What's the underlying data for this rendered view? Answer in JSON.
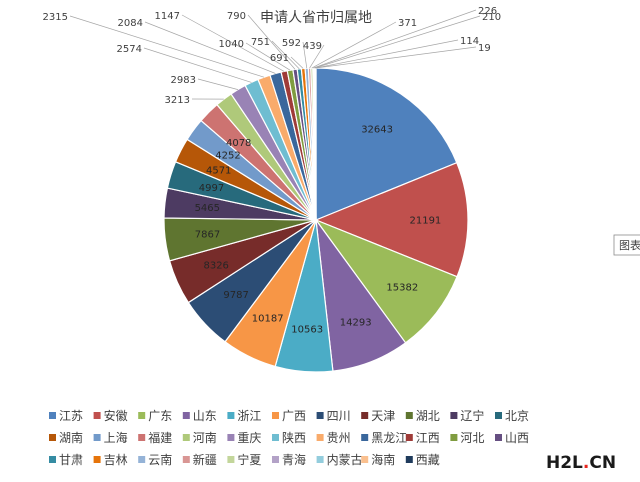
{
  "watermark": {
    "text_left": "H2L",
    "text_dot": ".",
    "text_right": "CN"
  },
  "side_tab": {
    "label": "图表"
  },
  "chart_data": {
    "type": "pie",
    "title": "申请人省市归属地",
    "legend_position": "bottom",
    "slices": [
      {
        "name": "江苏",
        "value": 32643,
        "color": "#4f81bd"
      },
      {
        "name": "安徽",
        "value": 21191,
        "color": "#c0504d"
      },
      {
        "name": "广东",
        "value": 15382,
        "color": "#9bbb59"
      },
      {
        "name": "山东",
        "value": 14293,
        "color": "#8064a2"
      },
      {
        "name": "浙江",
        "value": 10563,
        "color": "#4bacc6"
      },
      {
        "name": "广西",
        "value": 10187,
        "color": "#f79646"
      },
      {
        "name": "四川",
        "value": 9787,
        "color": "#2c4d75"
      },
      {
        "name": "天津",
        "value": 8326,
        "color": "#772c2a"
      },
      {
        "name": "湖北",
        "value": 7867,
        "color": "#5f7530"
      },
      {
        "name": "辽宁",
        "value": 5465,
        "color": "#4d3b62"
      },
      {
        "name": "北京",
        "value": 4997,
        "color": "#276a7c"
      },
      {
        "name": "湖南",
        "value": 4571,
        "color": "#b65708"
      },
      {
        "name": "上海",
        "value": 4252,
        "color": "#729aca"
      },
      {
        "name": "福建",
        "value": 4078,
        "color": "#cd7371"
      },
      {
        "name": "河南",
        "value": 3213,
        "color": "#afc97a"
      },
      {
        "name": "重庆",
        "value": 2983,
        "color": "#9983b5"
      },
      {
        "name": "陕西",
        "value": 2574,
        "color": "#6fbdd1"
      },
      {
        "name": "贵州",
        "value": 2315,
        "color": "#f9ab6b"
      },
      {
        "name": "黑龙江",
        "value": 2084,
        "color": "#3a679c"
      },
      {
        "name": "江西",
        "value": 1147,
        "color": "#9f3b38"
      },
      {
        "name": "河北",
        "value": 1040,
        "color": "#7f9c40"
      },
      {
        "name": "山西",
        "value": 790,
        "color": "#664f82"
      },
      {
        "name": "甘肃",
        "value": 751,
        "color": "#358ca3"
      },
      {
        "name": "吉林",
        "value": 691,
        "color": "#e6740a"
      },
      {
        "name": "云南",
        "value": 592,
        "color": "#95b3d7"
      },
      {
        "name": "新疆",
        "value": 439,
        "color": "#d99694"
      },
      {
        "name": "宁夏",
        "value": 371,
        "color": "#c3d69b"
      },
      {
        "name": "青海",
        "value": 226,
        "color": "#b3a2c7"
      },
      {
        "name": "内蒙古",
        "value": 210,
        "color": "#93cddd"
      },
      {
        "name": "海南",
        "value": 114,
        "color": "#fac08f"
      },
      {
        "name": "西藏",
        "value": 19,
        "color": "#1f3b5c"
      }
    ]
  }
}
